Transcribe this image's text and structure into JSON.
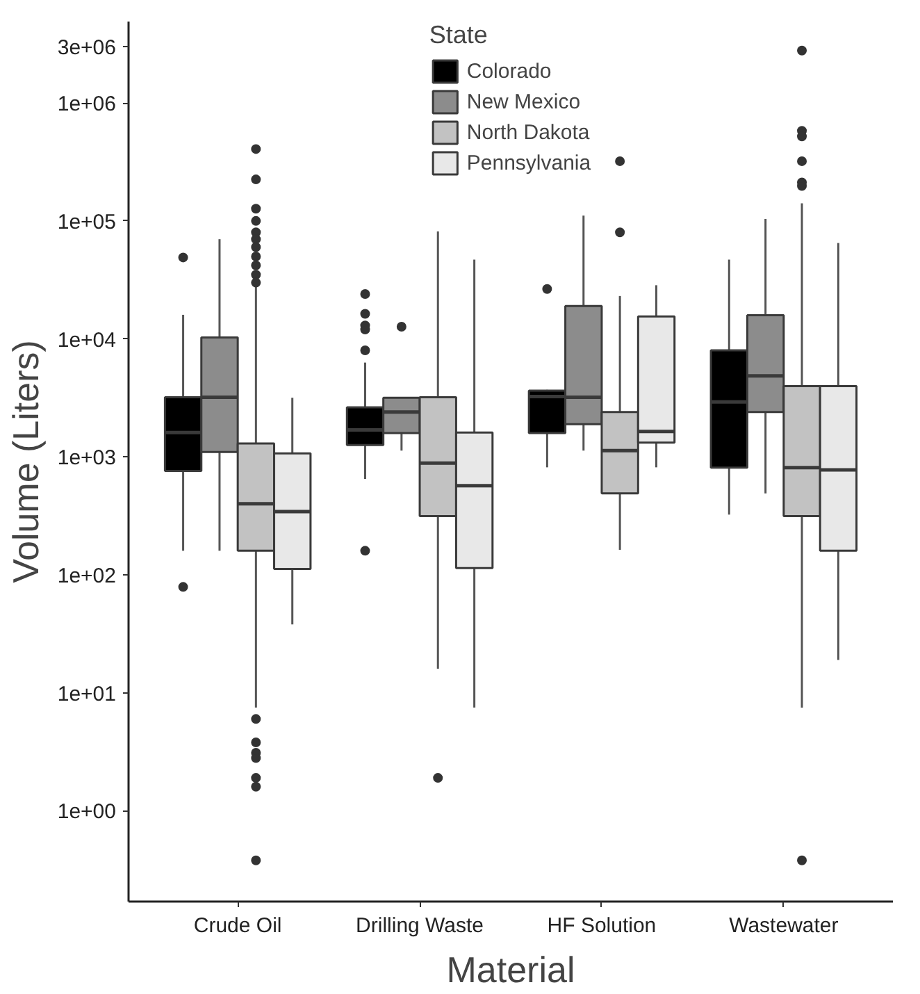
{
  "chart_data": {
    "type": "box",
    "xlabel": "Material",
    "ylabel": "Volume (Liters)",
    "legend_title": "State",
    "legend": "top",
    "grid": false,
    "log": true,
    "categories": [
      "Crude Oil",
      "Drilling Waste",
      "HF Solution",
      "Wastewater"
    ],
    "ylim": [
      0.17,
      4900000
    ],
    "yticks": [
      {
        "value": 1,
        "label": "1e+00"
      },
      {
        "value": 10,
        "label": "1e+01"
      },
      {
        "value": 100,
        "label": "1e+02"
      },
      {
        "value": 1000,
        "label": "1e+03"
      },
      {
        "value": 10000,
        "label": "1e+04"
      },
      {
        "value": 100000,
        "label": "1e+05"
      },
      {
        "value": 1000000,
        "label": "1e+06"
      },
      {
        "value": 3000000,
        "label": "3e+06"
      }
    ],
    "series": [
      {
        "name": "Colorado",
        "color": "#000000",
        "boxes": [
          {
            "low": 160,
            "q1": 760,
            "median": 1610,
            "q3": 3200,
            "high": 16000,
            "outliers": [
              49000,
              79
            ]
          },
          {
            "low": 650,
            "q1": 1260,
            "median": 1690,
            "q3": 2630,
            "high": 6300,
            "outliers": [
              24000,
              16300,
              13000,
              12000,
              8000,
              160
            ]
          },
          {
            "low": 815,
            "q1": 1590,
            "median": 3250,
            "q3": 3640,
            "high": 3700,
            "outliers": [
              26500
            ]
          },
          {
            "low": 324,
            "q1": 810,
            "median": 2920,
            "q3": 8000,
            "high": 47000
          }
        ]
      },
      {
        "name": "New Mexico",
        "color": "#8c8c8c",
        "boxes": [
          {
            "low": 160,
            "q1": 1100,
            "median": 3200,
            "q3": 10300,
            "high": 70000
          },
          {
            "low": 1130,
            "q1": 1590,
            "median": 2400,
            "q3": 3170,
            "high": 3170,
            "outliers": [
              12700
            ]
          },
          {
            "low": 1130,
            "q1": 1890,
            "median": 3200,
            "q3": 19000,
            "high": 111000
          },
          {
            "low": 490,
            "q1": 2400,
            "median": 4860,
            "q3": 15900,
            "high": 104000
          }
        ]
      },
      {
        "name": "North Dakota",
        "color": "#c2c2c2",
        "boxes": [
          {
            "low": 7.5,
            "q1": 160,
            "median": 400,
            "q3": 1300,
            "high": 28500,
            "outliers": [
              407000,
              225000,
              127000,
              100000,
              80000,
              70000,
              60000,
              50000,
              42000,
              35000,
              30000,
              6.0,
              3.8,
              3.1,
              2.8,
              1.9,
              1.6,
              0.38
            ]
          },
          {
            "low": 16,
            "q1": 315,
            "median": 885,
            "q3": 3200,
            "high": 81500,
            "outliers": [
              1.9
            ]
          },
          {
            "low": 163,
            "q1": 490,
            "median": 1130,
            "q3": 2400,
            "high": 23100,
            "outliers": [
              321000,
              80000
            ]
          },
          {
            "low": 7.5,
            "q1": 315,
            "median": 810,
            "q3": 3980,
            "high": 141000,
            "outliers": [
              2780000,
              580000,
              521000,
              321000,
              212000,
              198000,
              0.38
            ]
          }
        ]
      },
      {
        "name": "Pennsylvania",
        "color": "#e8e8e8",
        "boxes": [
          {
            "low": 38,
            "q1": 112,
            "median": 344,
            "q3": 1070,
            "high": 3170
          },
          {
            "low": 7.5,
            "q1": 114,
            "median": 570,
            "q3": 1610,
            "high": 47000
          },
          {
            "low": 815,
            "q1": 1320,
            "median": 1640,
            "q3": 15500,
            "high": 28500
          },
          {
            "low": 19,
            "q1": 160,
            "median": 775,
            "q3": 3980,
            "high": 65000
          }
        ]
      }
    ]
  }
}
